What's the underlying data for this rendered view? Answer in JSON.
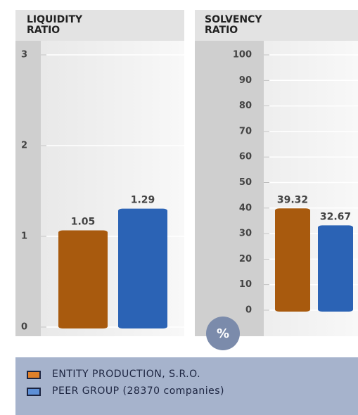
{
  "chart_data": [
    {
      "type": "bar",
      "title": "LIQUIDITY RATIO",
      "series": [
        {
          "values": [
            1.05
          ]
        },
        {
          "values": [
            1.29
          ]
        }
      ],
      "ylim": [
        0,
        3
      ],
      "yticks": [
        0,
        1,
        2,
        3
      ],
      "grid": true
    },
    {
      "type": "bar",
      "title": "SOLVENCY RATIO",
      "unit_label": "%",
      "series": [
        {
          "values": [
            39.32
          ]
        },
        {
          "values": [
            32.67
          ]
        }
      ],
      "ylim": [
        0,
        100
      ],
      "yticks": [
        0,
        10,
        20,
        30,
        40,
        50,
        60,
        70,
        80,
        90,
        100
      ],
      "grid": true
    }
  ],
  "legend": {
    "items": [
      {
        "name": "ENTITY PRODUCTION, S.R.O.",
        "color": "#a85a0e"
      },
      {
        "name": "PEER GROUP (28370 companies)",
        "color": "#2b63b5"
      }
    ]
  }
}
